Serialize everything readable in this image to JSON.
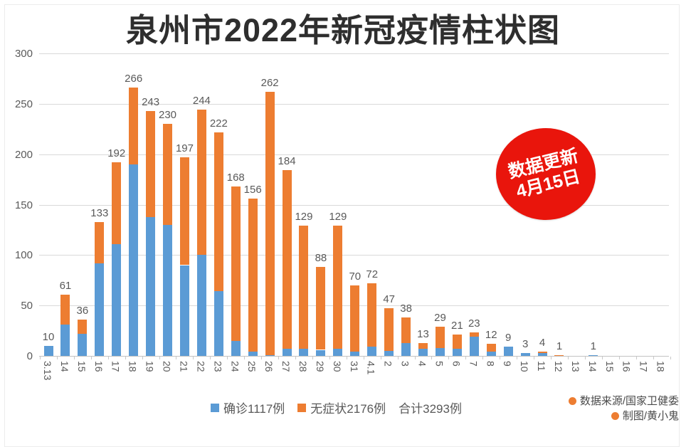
{
  "title": "泉州市2022年新冠疫情柱状图",
  "badge": {
    "line1": "数据更新",
    "line2": "4月15日"
  },
  "legend": {
    "confirmed_label": "确诊1117例",
    "asymptomatic_label": "无症状2176例",
    "total_label": "合计3293例"
  },
  "credits": {
    "source": "数据来源/国家卫健委",
    "author": "制图/黄小鬼"
  },
  "colors": {
    "confirmed": "#5b9bd5",
    "asymptomatic": "#ed7d31",
    "badge_red": "#e9150c",
    "grid": "#d9d9d9",
    "axis_text": "#595959"
  },
  "chart_data": {
    "type": "bar",
    "stacked": true,
    "title": "泉州市2022年新冠疫情柱状图",
    "xlabel": "",
    "ylabel": "",
    "ylim": [
      0,
      300
    ],
    "yticks": [
      300,
      250,
      200,
      150,
      100,
      50,
      0
    ],
    "grid": true,
    "legend_position": "bottom",
    "categories": [
      "3.13",
      "14",
      "15",
      "16",
      "17",
      "18",
      "19",
      "20",
      "21",
      "22",
      "23",
      "24",
      "25",
      "26",
      "27",
      "28",
      "29",
      "30",
      "31",
      "4.1",
      "2",
      "3",
      "4",
      "5",
      "6",
      "7",
      "8",
      "9",
      "10",
      "11",
      "12",
      "13",
      "14",
      "15",
      "16",
      "17",
      "18"
    ],
    "series": [
      {
        "name": "确诊",
        "color": "#5b9bd5",
        "values": [
          10,
          31,
          22,
          92,
          111,
          190,
          138,
          130,
          90,
          100,
          64,
          15,
          4,
          1,
          7,
          7,
          6,
          7,
          4,
          9,
          5,
          13,
          7,
          8,
          7,
          19,
          4,
          9,
          3,
          3,
          0,
          0,
          1,
          0,
          0,
          0,
          0
        ]
      },
      {
        "name": "无症状",
        "color": "#ed7d31",
        "values": [
          0,
          30,
          14,
          41,
          81,
          76,
          105,
          100,
          107,
          144,
          158,
          153,
          152,
          261,
          177,
          122,
          82,
          122,
          66,
          63,
          42,
          25,
          6,
          21,
          14,
          4,
          8,
          0,
          0,
          1,
          1,
          0,
          0,
          0,
          0,
          0,
          0
        ]
      }
    ],
    "totals": [
      10,
      61,
      36,
      133,
      192,
      266,
      243,
      230,
      197,
      244,
      222,
      168,
      156,
      262,
      184,
      129,
      88,
      129,
      70,
      72,
      47,
      38,
      13,
      29,
      21,
      23,
      12,
      9,
      3,
      4,
      1,
      0,
      1,
      0,
      0,
      0,
      0
    ]
  }
}
